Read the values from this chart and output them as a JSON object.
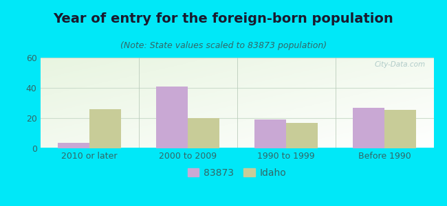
{
  "title": "Year of entry for the foreign-born population",
  "subtitle": "(Note: State values scaled to 83873 population)",
  "categories": [
    "2010 or later",
    "2000 to 2009",
    "1990 to 1999",
    "Before 1990"
  ],
  "series_83873": [
    3.5,
    41,
    19,
    27
  ],
  "series_idaho": [
    26,
    20,
    17,
    25.5
  ],
  "color_83873": "#c9a8d4",
  "color_idaho": "#c8cc98",
  "ylim": [
    0,
    60
  ],
  "yticks": [
    0,
    20,
    40,
    60
  ],
  "background_outer": "#00e8f8",
  "bar_width": 0.32,
  "legend_label_1": "83873",
  "legend_label_2": "Idaho",
  "title_fontsize": 14,
  "subtitle_fontsize": 9,
  "tick_fontsize": 9,
  "legend_fontsize": 10,
  "title_color": "#1a1a2e",
  "subtitle_color": "#336666",
  "tick_color": "#336666",
  "watermark": "City-Data.com"
}
